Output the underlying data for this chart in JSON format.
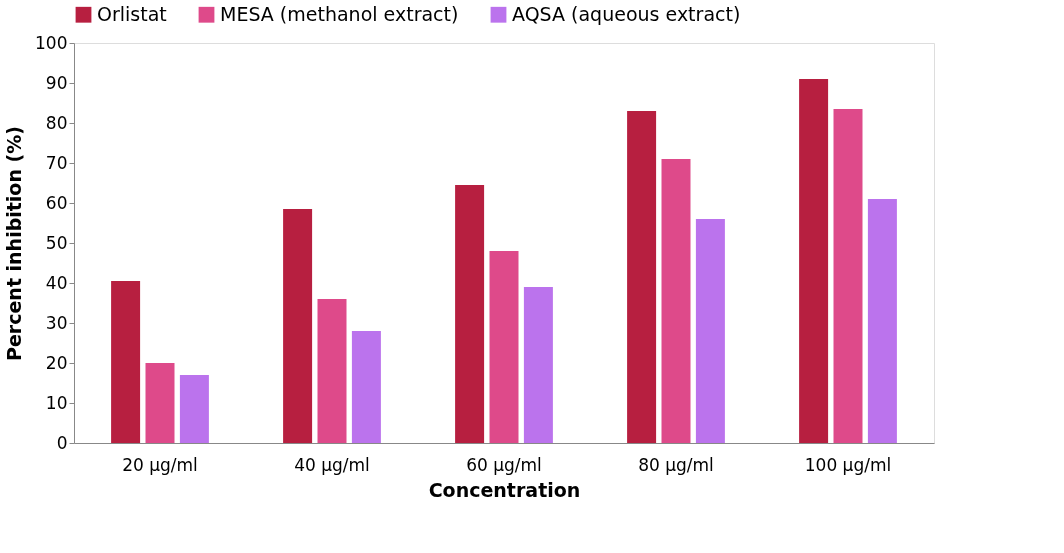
{
  "chart_data": {
    "type": "bar",
    "xlabel": "Concentration",
    "ylabel": "Percent inhibition (%)",
    "categories": [
      "20 µg/ml",
      "40 µg/ml",
      "60 µg/ml",
      "80 µg/ml",
      "100 µg/ml"
    ],
    "series": [
      {
        "name": "Orlistat",
        "color": "#b71f40",
        "values": [
          40.5,
          58.5,
          64.5,
          83,
          91
        ]
      },
      {
        "name": "MESA (methanol extract)",
        "color": "#de4a8a",
        "values": [
          20,
          36,
          48,
          71,
          83.5
        ]
      },
      {
        "name": "AQSA (aqueous extract)",
        "color": "#bb73ed",
        "values": [
          17,
          28,
          39,
          56,
          61
        ]
      }
    ],
    "ylim": [
      0,
      100
    ],
    "yticks": [
      0,
      10,
      20,
      30,
      40,
      50,
      60,
      70,
      80,
      90,
      100
    ],
    "grid": false,
    "legend": "top"
  }
}
